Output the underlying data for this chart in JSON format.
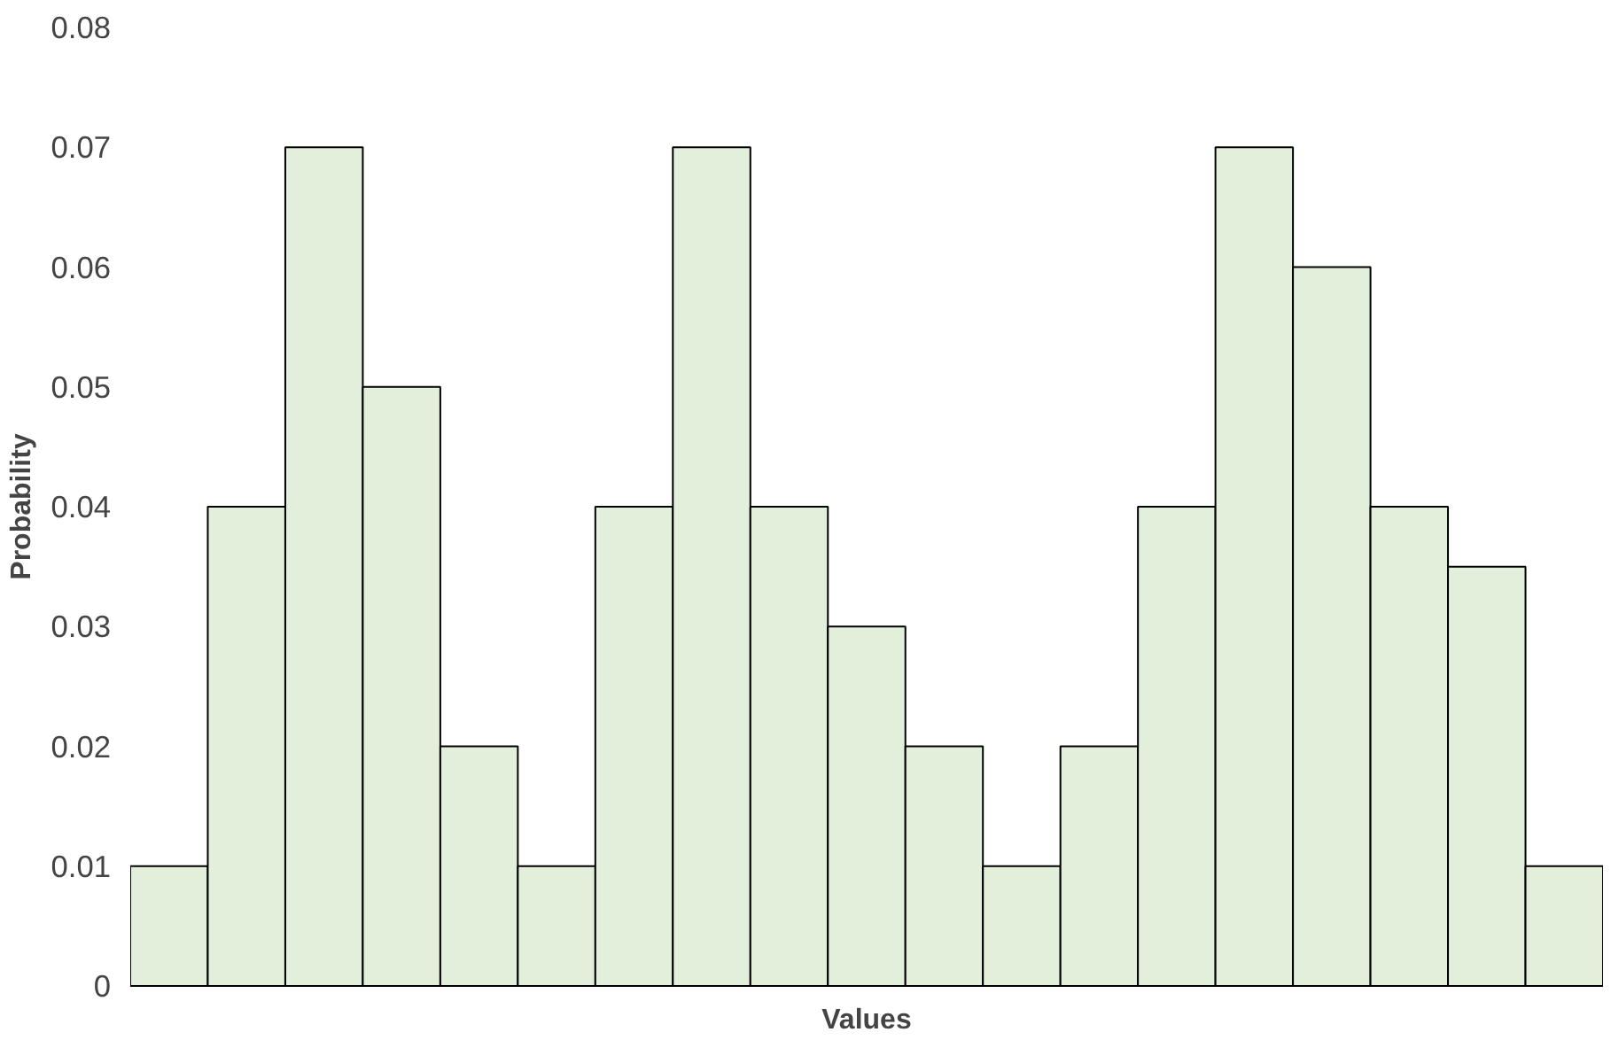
{
  "chart_data": {
    "type": "bar",
    "xlabel": "Values",
    "ylabel": "Probability",
    "categories": [
      null,
      null,
      null,
      null,
      null,
      null,
      null,
      null,
      null,
      null,
      null,
      null,
      null,
      null,
      null,
      null,
      null,
      null,
      null
    ],
    "values": [
      0.01,
      0.04,
      0.07,
      0.05,
      0.02,
      0.01,
      0.04,
      0.07,
      0.04,
      0.03,
      0.02,
      0.01,
      0.02,
      0.04,
      0.07,
      0.06,
      0.04,
      0.035,
      0.01
    ],
    "color": "#e2efda",
    "ylim": [
      0,
      0.08
    ],
    "yticks": [
      0,
      0.01,
      0.02,
      0.03,
      0.04,
      0.05,
      0.06,
      0.07,
      0.08
    ],
    "grid": false,
    "tick_labels": "y"
  }
}
